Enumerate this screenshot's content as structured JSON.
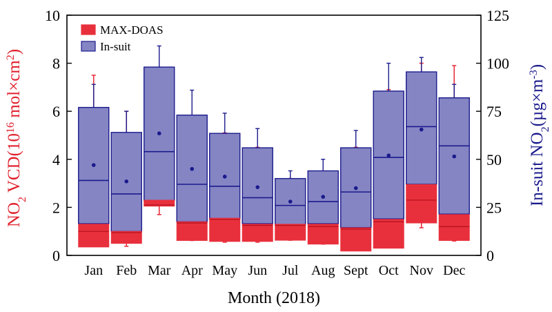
{
  "chart_data": {
    "type": "box",
    "xlabel": "Month (2018)",
    "ylabel_left": {
      "parts": [
        {
          "t": "NO"
        },
        {
          "t": "2",
          "sub": true
        },
        {
          "t": " VCD(10"
        },
        {
          "t": "16",
          "sup": true
        },
        {
          "t": " mol×cm"
        },
        {
          "t": "2",
          "sup": true
        },
        {
          "t": ")"
        }
      ]
    },
    "ylabel_right": {
      "parts": [
        {
          "t": "In-suit NO"
        },
        {
          "t": "2",
          "sub": true
        },
        {
          "t": "(µg×m"
        },
        {
          "t": "-3",
          "sup": true
        },
        {
          "t": ")"
        }
      ]
    },
    "left_axis": {
      "min": 0,
      "max": 10,
      "ticks": [
        0,
        2,
        4,
        6,
        8,
        10
      ]
    },
    "right_axis": {
      "min": 0,
      "max": 125,
      "ticks": [
        0,
        25,
        50,
        75,
        100,
        125
      ]
    },
    "categories": [
      "Jan",
      "Feb",
      "Mar",
      "Apr",
      "May",
      "Jun",
      "Jul",
      "Aug",
      "Sept",
      "Oct",
      "Nov",
      "Dec"
    ],
    "legend": [
      {
        "name": "MAX-DOAS",
        "color": "#e8303c"
      },
      {
        "name": "In-suit",
        "color": "#8585c4"
      }
    ],
    "colors": {
      "max_doas": "#e8303c",
      "in_suit_fill": "#8585c4",
      "in_suit_edge": "#1a1a8c"
    },
    "series": [
      {
        "name": "MAX-DOAS",
        "axis": "left",
        "whisker_high": [
          7.5,
          6.0,
          2.3,
          5.8,
          5.1,
          4.5,
          3.2,
          3.5,
          4.5,
          6.9,
          8.0,
          7.9
        ],
        "q3": [
          1.3,
          1.0,
          2.3,
          1.4,
          1.55,
          1.3,
          1.3,
          1.3,
          1.15,
          1.5,
          2.95,
          1.7
        ],
        "median": [
          1.0,
          0.95,
          2.1,
          1.35,
          1.5,
          1.25,
          1.25,
          1.2,
          1.1,
          1.4,
          2.3,
          1.2
        ],
        "q1": [
          0.35,
          0.5,
          2.05,
          0.62,
          0.58,
          0.58,
          0.63,
          0.47,
          0.18,
          0.3,
          1.35,
          0.62
        ],
        "whisker_low": [
          0.4,
          0.38,
          1.7,
          0.62,
          0.55,
          0.55,
          0.63,
          0.47,
          0.25,
          0.33,
          1.15,
          0.6
        ]
      },
      {
        "name": "In-suit",
        "axis": "right",
        "whisker_high": [
          89,
          75,
          109,
          86,
          74,
          66,
          44,
          50,
          65,
          100,
          103,
          89
        ],
        "q3": [
          77,
          64,
          98,
          73,
          63.5,
          56,
          40,
          44,
          56,
          85.5,
          95.5,
          82
        ],
        "median": [
          39,
          32,
          54,
          37,
          36,
          30,
          26,
          28,
          33,
          51,
          67,
          57
        ],
        "mean": [
          47,
          38.5,
          63.5,
          45,
          41,
          35.5,
          28,
          30.5,
          35,
          52,
          65.5,
          51.5
        ],
        "q1": [
          16.5,
          12.5,
          28.5,
          17.5,
          19,
          16.5,
          16,
          16.5,
          14.5,
          19,
          37,
          21.5
        ],
        "whisker_low": [
          12,
          10.5,
          27,
          16,
          18,
          16,
          16,
          14.5,
          11,
          16,
          24,
          12
        ]
      }
    ]
  }
}
